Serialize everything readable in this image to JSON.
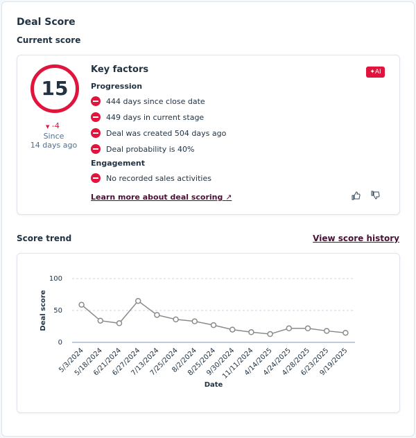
{
  "header": {
    "title": "Deal Score"
  },
  "current_score": {
    "heading": "Current score",
    "score": 15,
    "change": -4,
    "since_label": "Since",
    "since_value": "14 days ago",
    "key_factors_title": "Key factors",
    "ai_badge": "AI",
    "groups": [
      {
        "name": "Progression",
        "factors": [
          "444 days since close date",
          "449 days in current stage",
          "Deal was created 504 days ago",
          "Deal probability is 40%"
        ]
      },
      {
        "name": "Engagement",
        "factors": [
          "No recorded sales activities"
        ]
      }
    ],
    "learn_more": "Learn more about deal scoring"
  },
  "score_trend": {
    "heading": "Score trend",
    "history_link": "View score history"
  },
  "chart_data": {
    "type": "line",
    "x_label": "Date",
    "y_label": "Deal score",
    "categories": [
      "5/3/2024",
      "5/18/2024",
      "6/21/2024",
      "6/27/2024",
      "7/13/2024",
      "7/25/2024",
      "8/2/2024",
      "8/25/2024",
      "9/30/2024",
      "11/11/2024",
      "4/14/2025",
      "4/24/2025",
      "4/28/2025",
      "6/23/2025",
      "9/19/2025"
    ],
    "values": [
      59,
      34,
      30,
      65,
      43,
      36,
      33,
      27,
      20,
      16,
      13,
      22,
      22,
      18,
      15
    ],
    "color": "#8a8a8a",
    "ylim": [
      0,
      100
    ],
    "yticks": [
      0,
      50,
      100
    ],
    "grid": true
  }
}
